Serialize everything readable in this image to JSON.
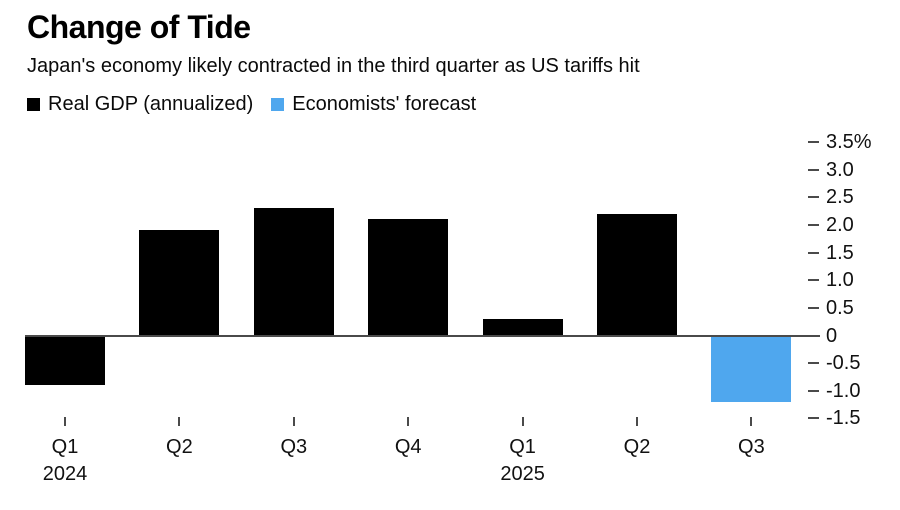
{
  "chart_data": {
    "type": "bar",
    "title": "Change of Tide",
    "subtitle": "Japan's economy likely contracted in the third quarter as US tariffs hit",
    "categories": [
      "Q1",
      "Q2",
      "Q3",
      "Q4",
      "Q1",
      "Q2",
      "Q3"
    ],
    "x_axis": {
      "year_labels": [
        {
          "index": 0,
          "label": "2024"
        },
        {
          "index": 4,
          "label": "2025"
        }
      ]
    },
    "series": [
      {
        "name": "Real GDP (annualized)",
        "color": "#000000",
        "values": [
          -0.9,
          1.9,
          2.3,
          2.1,
          0.3,
          2.2,
          null
        ]
      },
      {
        "name": "Economists' forecast",
        "color": "#4fa7ee",
        "values": [
          null,
          null,
          null,
          null,
          null,
          null,
          -1.2
        ]
      }
    ],
    "y_axis": {
      "side": "right",
      "ylim": [
        -1.5,
        3.5
      ],
      "tick_step": 0.5,
      "tick_labels": [
        "3.5%",
        "3.0",
        "2.5",
        "2.0",
        "1.5",
        "1.0",
        "0.5",
        "0",
        "-0.5",
        "-1.0",
        "-1.5"
      ]
    },
    "legend_position": "top-left",
    "grid": false
  }
}
